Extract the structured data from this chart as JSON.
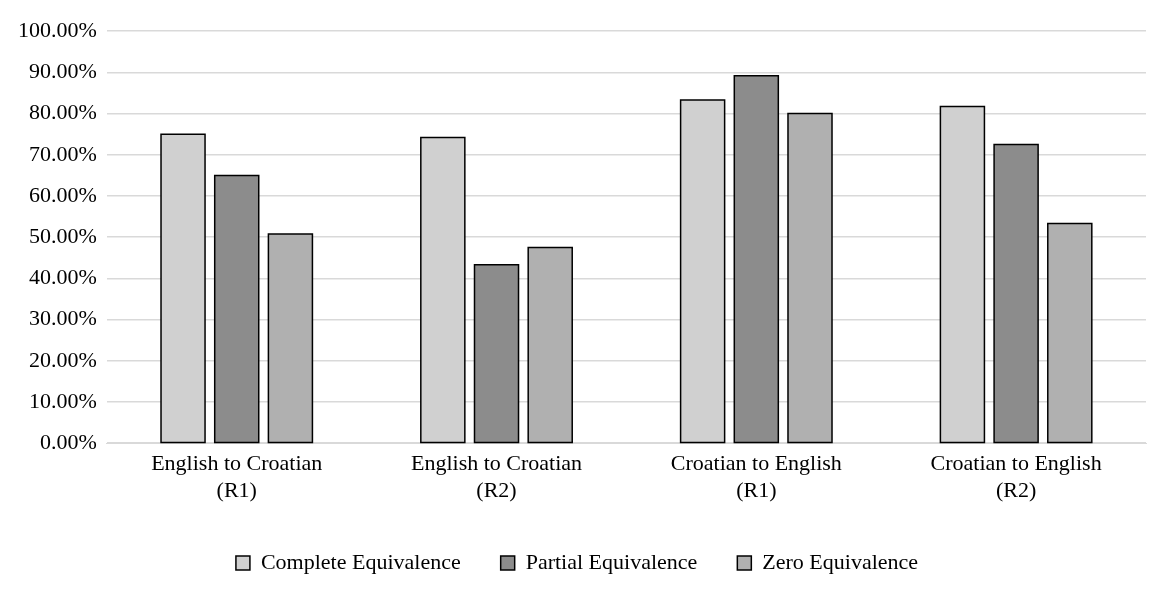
{
  "chart_data": {
    "type": "bar",
    "categories": [
      "English to Croatian (R1)",
      "English to Croatian (R2)",
      "Croatian to English (R1)",
      "Croatian to English (R2)"
    ],
    "series": [
      {
        "name": "Complete Equivalence",
        "color": "#d0d0d0",
        "values": [
          75.0,
          74.2,
          83.3,
          81.7
        ]
      },
      {
        "name": "Partial Equivalence",
        "color": "#8c8c8c",
        "values": [
          65.0,
          43.3,
          89.2,
          72.5
        ]
      },
      {
        "name": "Zero Equivalence",
        "color": "#b0b0b0",
        "values": [
          50.8,
          47.5,
          80.0,
          53.3
        ]
      }
    ],
    "ylim": [
      0,
      100
    ],
    "yticks": [
      {
        "value": 0,
        "label": "0.00%"
      },
      {
        "value": 10,
        "label": "10.00%"
      },
      {
        "value": 20,
        "label": "20.00%"
      },
      {
        "value": 30,
        "label": "30.00%"
      },
      {
        "value": 40,
        "label": "40.00%"
      },
      {
        "value": 50,
        "label": "50.00%"
      },
      {
        "value": 60,
        "label": "60.00%"
      },
      {
        "value": 70,
        "label": "70.00%"
      },
      {
        "value": 80,
        "label": "80.00%"
      },
      {
        "value": 90,
        "label": "90.00%"
      },
      {
        "value": 100,
        "label": "100.00%"
      }
    ],
    "grid": "y",
    "legend": "bottom"
  }
}
